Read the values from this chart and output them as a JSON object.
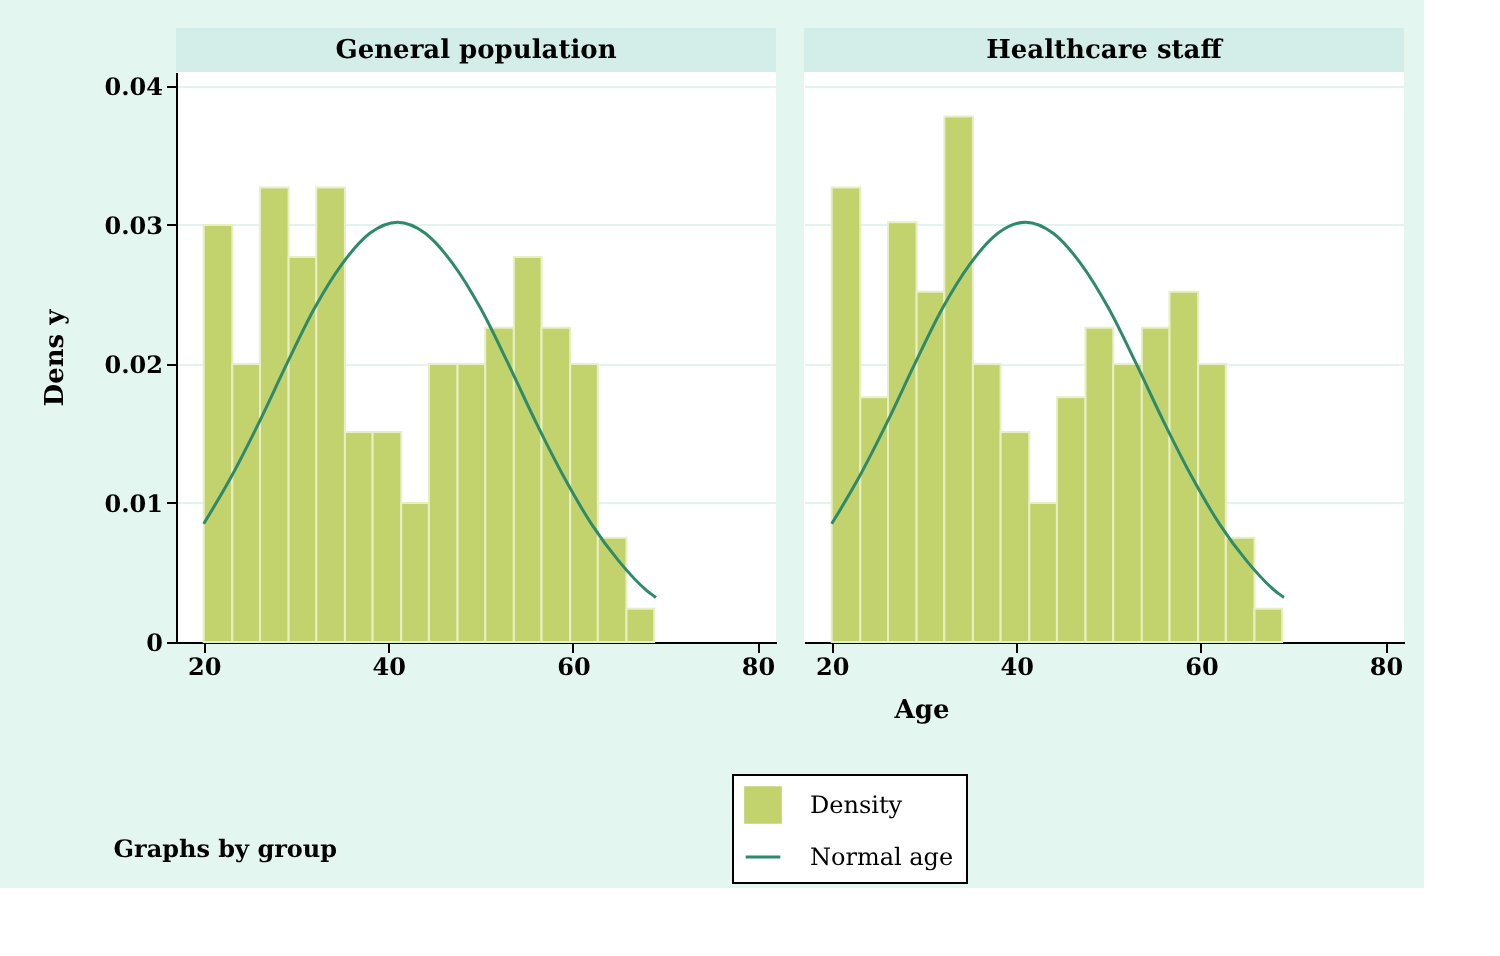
{
  "chart_data": [
    {
      "type": "histogram",
      "title": "General population",
      "xlabel": "Age",
      "ylabel": "Dens y",
      "xlim": [
        17,
        82
      ],
      "xticks": [
        20,
        40,
        60,
        80
      ],
      "ylim": [
        0,
        0.041
      ],
      "yticks": [
        0,
        0.01,
        0.02,
        0.03,
        0.04
      ],
      "grid": "y",
      "legend": "bottom",
      "annotations": [
        "Graphs by group"
      ],
      "bins": [
        20.0,
        23.1,
        26.1,
        29.2,
        32.2,
        35.3,
        38.3,
        41.4,
        44.4,
        47.5,
        50.5,
        53.6,
        56.6,
        59.7,
        62.7,
        65.8,
        68.8
      ],
      "series": [
        {
          "name": "Density",
          "color": "#c2d36d",
          "values": [
            0.03,
            0.02,
            0.0327,
            0.0277,
            0.0327,
            0.0151,
            0.0151,
            0.01,
            0.02,
            0.02,
            0.0226,
            0.0277,
            0.0226,
            0.02,
            0.0075,
            0.0024
          ]
        },
        {
          "name": "Normal age",
          "type": "line",
          "color": "#2e8a6a",
          "x": [
            20,
            23,
            26,
            29,
            32,
            35,
            38,
            41,
            44,
            47,
            50,
            53,
            56,
            59,
            62,
            65,
            68,
            69
          ],
          "values": [
            0.0085,
            0.0119,
            0.0158,
            0.02,
            0.024,
            0.0272,
            0.0294,
            0.0302,
            0.0294,
            0.0272,
            0.024,
            0.02,
            0.0158,
            0.0119,
            0.0085,
            0.0058,
            0.0037,
            0.0032
          ]
        }
      ]
    },
    {
      "type": "histogram",
      "title": "Healthcare staff",
      "xlim": [
        17,
        82
      ],
      "xticks": [
        20,
        40,
        60,
        80
      ],
      "ylim": [
        0,
        0.041
      ],
      "yticks": [
        0,
        0.01,
        0.02,
        0.03,
        0.04
      ],
      "grid": "y",
      "tick_labels": "x",
      "bins": [
        20.0,
        23.1,
        26.1,
        29.2,
        32.2,
        35.3,
        38.3,
        41.4,
        44.4,
        47.5,
        50.5,
        53.6,
        56.6,
        59.7,
        62.7,
        65.8,
        68.8
      ],
      "series": [
        {
          "name": "Density",
          "color": "#c2d36d",
          "values": [
            0.0327,
            0.0176,
            0.0302,
            0.0252,
            0.0378,
            0.02,
            0.0151,
            0.01,
            0.0176,
            0.0226,
            0.02,
            0.0226,
            0.0252,
            0.02,
            0.0075,
            0.0024
          ]
        },
        {
          "name": "Normal age",
          "type": "line",
          "color": "#2e8a6a",
          "x": [
            20,
            23,
            26,
            29,
            32,
            35,
            38,
            41,
            44,
            47,
            50,
            53,
            56,
            59,
            62,
            65,
            68,
            69
          ],
          "values": [
            0.0085,
            0.0119,
            0.0158,
            0.02,
            0.024,
            0.0272,
            0.0294,
            0.0302,
            0.0294,
            0.0272,
            0.024,
            0.02,
            0.0158,
            0.0119,
            0.0085,
            0.0058,
            0.0037,
            0.0032
          ]
        }
      ]
    }
  ]
}
